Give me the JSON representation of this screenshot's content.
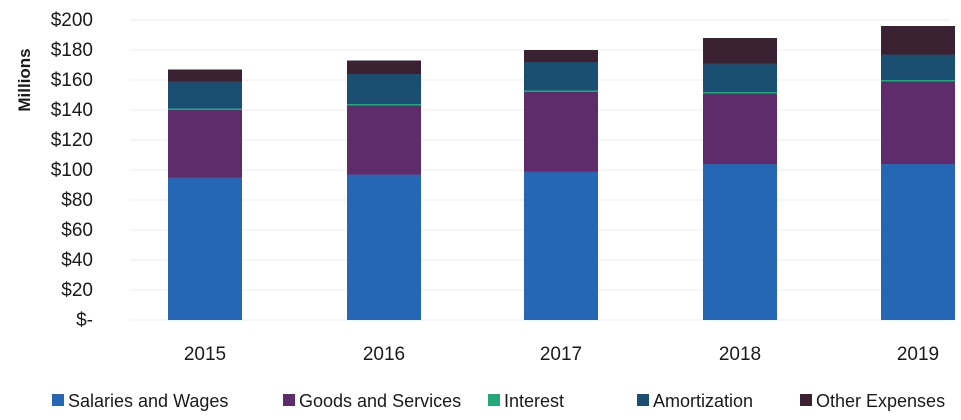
{
  "chart_data": {
    "type": "bar",
    "stacked": true,
    "title": "",
    "xlabel": "",
    "ylabel": "Millions",
    "ylim": [
      0,
      200
    ],
    "y_ticks": [
      {
        "value": 0,
        "label": "$-"
      },
      {
        "value": 20,
        "label": "$20"
      },
      {
        "value": 40,
        "label": "$40"
      },
      {
        "value": 60,
        "label": "$60"
      },
      {
        "value": 80,
        "label": "$80"
      },
      {
        "value": 100,
        "label": "$100"
      },
      {
        "value": 120,
        "label": "$120"
      },
      {
        "value": 140,
        "label": "$140"
      },
      {
        "value": 160,
        "label": "$160"
      },
      {
        "value": 180,
        "label": "$180"
      },
      {
        "value": 200,
        "label": "$200"
      }
    ],
    "categories": [
      "2015",
      "2016",
      "2017",
      "2018",
      "2019"
    ],
    "series": [
      {
        "name": "Salaries and Wages",
        "color": "#2566b5",
        "values": [
          95,
          97,
          99,
          104,
          104
        ]
      },
      {
        "name": "Goods and Services",
        "color": "#5e2b6b",
        "values": [
          45,
          46,
          53,
          47,
          55
        ]
      },
      {
        "name": "Interest",
        "color": "#23a87a",
        "values": [
          1,
          1,
          1,
          1,
          1
        ]
      },
      {
        "name": "Amortization",
        "color": "#1b4f72",
        "values": [
          18,
          20,
          19,
          19,
          17
        ]
      },
      {
        "name": "Other Expenses",
        "color": "#3a2233",
        "values": [
          8,
          9,
          8,
          17,
          19
        ]
      }
    ],
    "grid": true,
    "legend_position": "bottom"
  }
}
